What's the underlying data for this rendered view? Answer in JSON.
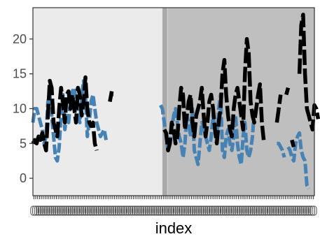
{
  "chart_data": {
    "type": "line",
    "title": "",
    "xlabel": "index",
    "ylabel": "",
    "ylim": [
      -2.5,
      24.5
    ],
    "xlim": [
      0,
      150
    ],
    "y_ticks": [
      0,
      5,
      10,
      15,
      20
    ],
    "x_tick_count": 150,
    "x_tick_labels_legible": false,
    "grid": false,
    "legend": "none",
    "background_regions": [
      {
        "x_start": 0,
        "x_end": 70,
        "color": "#ebebeb"
      },
      {
        "x_start": 70,
        "x_end": 72,
        "color": "#d0d0d0"
      },
      {
        "x_start": 72,
        "x_end": 150,
        "color": "#bfbfbf"
      }
    ],
    "vertical_band": {
      "x_start": 69,
      "x_end": 71.5,
      "color": "#a9a9a9"
    },
    "series": [
      {
        "color": "#4682b4",
        "line_style": "dashed",
        "values": [
          8,
          10,
          10,
          9,
          8,
          7,
          5,
          6,
          11,
          12,
          9,
          6,
          3,
          2.5,
          4.5,
          9,
          12,
          7,
          9,
          8,
          11,
          12.5,
          13,
          11,
          9,
          8,
          12,
          14,
          12,
          6,
          8,
          11,
          12,
          10,
          8,
          7,
          6,
          6.5,
          7,
          5.5,
          null,
          null,
          12,
          12,
          null,
          null,
          null,
          null,
          null,
          null,
          null,
          null,
          null,
          null,
          null,
          null,
          null,
          null,
          null,
          null,
          null,
          null,
          null,
          null,
          null,
          null,
          null,
          null,
          10.5,
          10,
          8,
          6,
          4,
          5,
          7,
          9,
          10,
          8,
          6,
          5,
          3,
          5,
          9,
          8,
          6,
          10,
          4,
          3,
          2,
          5,
          8,
          7.5,
          6,
          5,
          4,
          6,
          9,
          7,
          5,
          10,
          12,
          4,
          3,
          6,
          7,
          5,
          4,
          6,
          9,
          5,
          3,
          2,
          6,
          8,
          4,
          3,
          4,
          6,
          10,
          null,
          null,
          null,
          null,
          null,
          null,
          null,
          null,
          null,
          null,
          null,
          5,
          5,
          4.5,
          4,
          3,
          null,
          4.5,
          4,
          3,
          2.5,
          5,
          6,
          6.5,
          4,
          3,
          2.5,
          -1,
          -1.5
        ]
      },
      {
        "color": "#000000",
        "line_style": "dashed",
        "values": [
          5,
          5.5,
          5,
          6,
          5.5,
          6.5,
          5,
          4,
          9,
          14,
          13,
          8,
          7,
          6,
          10,
          13,
          11,
          8,
          12,
          12.5,
          10,
          12,
          10,
          8,
          13,
          12,
          9,
          11,
          14.5,
          10,
          8,
          7.5,
          8,
          5,
          4,
          null,
          null,
          null,
          null,
          null,
          null,
          11,
          12.5,
          null,
          null,
          null,
          null,
          null,
          null,
          null,
          null,
          null,
          null,
          null,
          null,
          null,
          null,
          null,
          null,
          null,
          null,
          null,
          null,
          null,
          null,
          null,
          null,
          null,
          null,
          null,
          7,
          6.5,
          4,
          5,
          8,
          7,
          5,
          6,
          10,
          13,
          12,
          7,
          9,
          11,
          12,
          8,
          6,
          9,
          10,
          11,
          13,
          9,
          6,
          8,
          11,
          12,
          10,
          7,
          5,
          8,
          10,
          15,
          17,
          12,
          9,
          7,
          6,
          10,
          12,
          13,
          11,
          9,
          7,
          15,
          20,
          18,
          11,
          9,
          8,
          10,
          12,
          13.5,
          8,
          5.5,
          null,
          null,
          null,
          null,
          null,
          null,
          8,
          10,
          12,
          null,
          null,
          12,
          13,
          null,
          5.5,
          4.5,
          null,
          null,
          15,
          22,
          23.5,
          15,
          10,
          9,
          8,
          7,
          10.5,
          10,
          8.5
        ]
      }
    ]
  }
}
